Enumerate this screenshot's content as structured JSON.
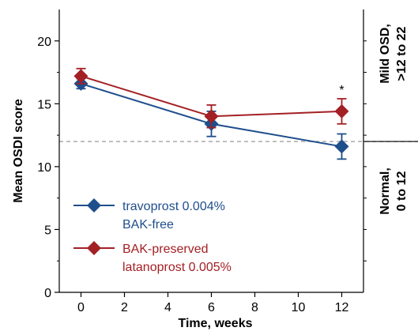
{
  "chart_data": {
    "type": "line",
    "xlabel": "Time, weeks",
    "ylabel": "Mean OSDI score",
    "xlim": [
      -1,
      13
    ],
    "ylim": [
      0,
      22.5
    ],
    "xticks": [
      0,
      2,
      4,
      6,
      8,
      10,
      12
    ],
    "yticks": [
      0,
      5,
      10,
      15,
      20
    ],
    "threshold": 12,
    "series": [
      {
        "name": "travoprost 0.004% BAK-free",
        "legend_lines": [
          "travoprost 0.004%",
          "BAK-free"
        ],
        "color": "#1f4e8c",
        "x": [
          0,
          6,
          12
        ],
        "y": [
          16.6,
          13.4,
          11.6
        ],
        "err": [
          0.4,
          1.0,
          1.0
        ]
      },
      {
        "name": "BAK-preserved latanoprost 0.005%",
        "legend_lines": [
          "BAK-preserved",
          "latanoprost 0.005%"
        ],
        "color": "#a32024",
        "x": [
          0,
          6,
          12
        ],
        "y": [
          17.2,
          14.0,
          14.4
        ],
        "err": [
          0.6,
          0.9,
          1.0
        ]
      }
    ],
    "annotations": [
      {
        "text": "*",
        "x": 12
      }
    ],
    "bands": [
      {
        "lines": [
          "Mild OSD,",
          ">12 to 22"
        ],
        "from": 12,
        "to": 22.5
      },
      {
        "lines": [
          "Normal,",
          "0 to 12"
        ],
        "from": 0,
        "to": 12
      }
    ]
  }
}
